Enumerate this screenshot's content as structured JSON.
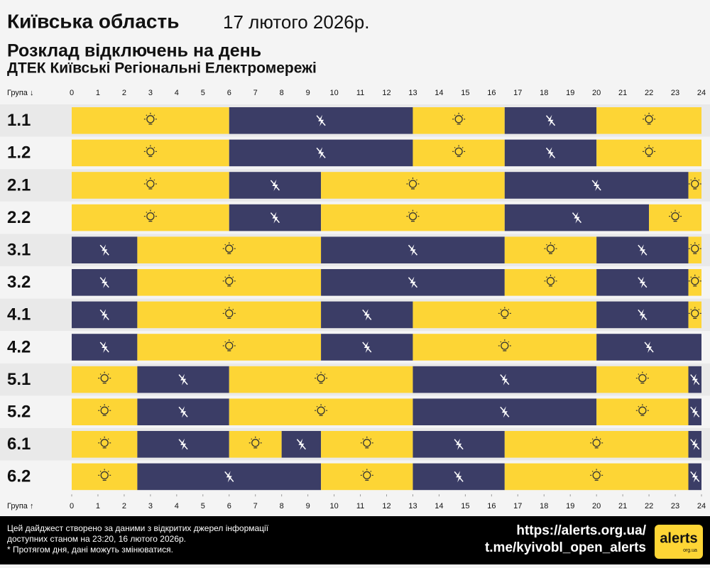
{
  "chart_data": {
    "type": "timeline",
    "title": "Київська область",
    "date": "17 лютого 2026р.",
    "subtitle": "Розклад відключень на день",
    "subtitle2": "ДТЕК Київські Регіональні Електромережі",
    "y_label_top": "Група ↓",
    "y_label_bottom": "Група ↑",
    "xlim": [
      0,
      24
    ],
    "xticks": [
      0,
      1,
      2,
      3,
      4,
      5,
      6,
      7,
      8,
      9,
      10,
      11,
      12,
      13,
      14,
      15,
      16,
      17,
      18,
      19,
      20,
      21,
      22,
      23,
      24
    ],
    "colors": {
      "on": "#fdd535",
      "off": "#3b3d66"
    },
    "rows": [
      {
        "name": "1.1",
        "segments": [
          {
            "start": 0,
            "end": 6,
            "status": "on"
          },
          {
            "start": 6,
            "end": 13,
            "status": "off"
          },
          {
            "start": 13,
            "end": 16.5,
            "status": "on"
          },
          {
            "start": 16.5,
            "end": 20,
            "status": "off"
          },
          {
            "start": 20,
            "end": 24,
            "status": "on"
          }
        ]
      },
      {
        "name": "1.2",
        "segments": [
          {
            "start": 0,
            "end": 6,
            "status": "on"
          },
          {
            "start": 6,
            "end": 13,
            "status": "off"
          },
          {
            "start": 13,
            "end": 16.5,
            "status": "on"
          },
          {
            "start": 16.5,
            "end": 20,
            "status": "off"
          },
          {
            "start": 20,
            "end": 24,
            "status": "on"
          }
        ]
      },
      {
        "name": "2.1",
        "segments": [
          {
            "start": 0,
            "end": 6,
            "status": "on"
          },
          {
            "start": 6,
            "end": 9.5,
            "status": "off"
          },
          {
            "start": 9.5,
            "end": 16.5,
            "status": "on"
          },
          {
            "start": 16.5,
            "end": 23.5,
            "status": "off"
          },
          {
            "start": 23.5,
            "end": 24,
            "status": "on"
          }
        ]
      },
      {
        "name": "2.2",
        "segments": [
          {
            "start": 0,
            "end": 6,
            "status": "on"
          },
          {
            "start": 6,
            "end": 9.5,
            "status": "off"
          },
          {
            "start": 9.5,
            "end": 16.5,
            "status": "on"
          },
          {
            "start": 16.5,
            "end": 22,
            "status": "off"
          },
          {
            "start": 22,
            "end": 24,
            "status": "on"
          }
        ]
      },
      {
        "name": "3.1",
        "segments": [
          {
            "start": 0,
            "end": 2.5,
            "status": "off"
          },
          {
            "start": 2.5,
            "end": 9.5,
            "status": "on"
          },
          {
            "start": 9.5,
            "end": 16.5,
            "status": "off"
          },
          {
            "start": 16.5,
            "end": 20,
            "status": "on"
          },
          {
            "start": 20,
            "end": 23.5,
            "status": "off"
          },
          {
            "start": 23.5,
            "end": 24,
            "status": "on"
          }
        ]
      },
      {
        "name": "3.2",
        "segments": [
          {
            "start": 0,
            "end": 2.5,
            "status": "off"
          },
          {
            "start": 2.5,
            "end": 9.5,
            "status": "on"
          },
          {
            "start": 9.5,
            "end": 16.5,
            "status": "off"
          },
          {
            "start": 16.5,
            "end": 20,
            "status": "on"
          },
          {
            "start": 20,
            "end": 23.5,
            "status": "off"
          },
          {
            "start": 23.5,
            "end": 24,
            "status": "on"
          }
        ]
      },
      {
        "name": "4.1",
        "segments": [
          {
            "start": 0,
            "end": 2.5,
            "status": "off"
          },
          {
            "start": 2.5,
            "end": 9.5,
            "status": "on"
          },
          {
            "start": 9.5,
            "end": 13,
            "status": "off"
          },
          {
            "start": 13,
            "end": 20,
            "status": "on"
          },
          {
            "start": 20,
            "end": 23.5,
            "status": "off"
          },
          {
            "start": 23.5,
            "end": 24,
            "status": "on"
          }
        ]
      },
      {
        "name": "4.2",
        "segments": [
          {
            "start": 0,
            "end": 2.5,
            "status": "off"
          },
          {
            "start": 2.5,
            "end": 9.5,
            "status": "on"
          },
          {
            "start": 9.5,
            "end": 13,
            "status": "off"
          },
          {
            "start": 13,
            "end": 20,
            "status": "on"
          },
          {
            "start": 20,
            "end": 24,
            "status": "off"
          }
        ]
      },
      {
        "name": "5.1",
        "segments": [
          {
            "start": 0,
            "end": 2.5,
            "status": "on"
          },
          {
            "start": 2.5,
            "end": 6,
            "status": "off"
          },
          {
            "start": 6,
            "end": 13,
            "status": "on"
          },
          {
            "start": 13,
            "end": 20,
            "status": "off"
          },
          {
            "start": 20,
            "end": 23.5,
            "status": "on"
          },
          {
            "start": 23.5,
            "end": 24,
            "status": "off"
          }
        ]
      },
      {
        "name": "5.2",
        "segments": [
          {
            "start": 0,
            "end": 2.5,
            "status": "on"
          },
          {
            "start": 2.5,
            "end": 6,
            "status": "off"
          },
          {
            "start": 6,
            "end": 13,
            "status": "on"
          },
          {
            "start": 13,
            "end": 20,
            "status": "off"
          },
          {
            "start": 20,
            "end": 23.5,
            "status": "on"
          },
          {
            "start": 23.5,
            "end": 24,
            "status": "off"
          }
        ]
      },
      {
        "name": "6.1",
        "segments": [
          {
            "start": 0,
            "end": 2.5,
            "status": "on"
          },
          {
            "start": 2.5,
            "end": 6,
            "status": "off"
          },
          {
            "start": 6,
            "end": 8,
            "status": "on"
          },
          {
            "start": 8,
            "end": 9.5,
            "status": "off"
          },
          {
            "start": 9.5,
            "end": 13,
            "status": "on"
          },
          {
            "start": 13,
            "end": 16.5,
            "status": "off"
          },
          {
            "start": 16.5,
            "end": 23.5,
            "status": "on"
          },
          {
            "start": 23.5,
            "end": 24,
            "status": "off"
          }
        ]
      },
      {
        "name": "6.2",
        "segments": [
          {
            "start": 0,
            "end": 2.5,
            "status": "on"
          },
          {
            "start": 2.5,
            "end": 9.5,
            "status": "off"
          },
          {
            "start": 9.5,
            "end": 13,
            "status": "on"
          },
          {
            "start": 13,
            "end": 16.5,
            "status": "off"
          },
          {
            "start": 16.5,
            "end": 23.5,
            "status": "on"
          },
          {
            "start": 23.5,
            "end": 24,
            "status": "off"
          }
        ]
      }
    ]
  },
  "footer": {
    "lines": [
      "Цей дайджест створено за даними з відкритих джерел інформації",
      "доступних станом на 23:20, 16 лютого 2026р.",
      "* Протягом дня, дані можуть змінюватися."
    ],
    "site": "https://alerts.org.ua/",
    "telegram": "t.me/kyivobl_open_alerts",
    "logo": "alerts",
    "logo_sub": "org.ua"
  }
}
